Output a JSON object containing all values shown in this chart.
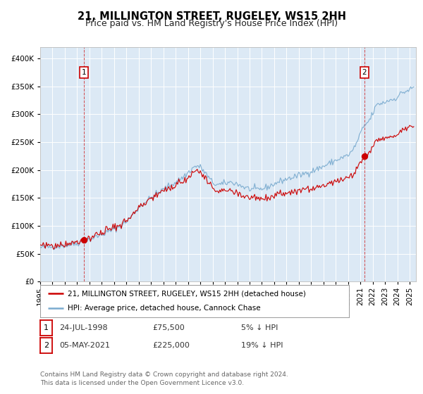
{
  "title": "21, MILLINGTON STREET, RUGELEY, WS15 2HH",
  "subtitle": "Price paid vs. HM Land Registry's House Price Index (HPI)",
  "ylim": [
    0,
    420000
  ],
  "yticks": [
    0,
    50000,
    100000,
    150000,
    200000,
    250000,
    300000,
    350000,
    400000
  ],
  "background_color": "#dce9f5",
  "grid_color": "#ffffff",
  "red_color": "#cc0000",
  "blue_color": "#7aabcf",
  "xstart_year": 1995.0,
  "xend_year": 2025.5,
  "sale1_t": 1998.558,
  "sale1_price": 75500,
  "sale2_t": 2021.336,
  "sale2_price": 225000,
  "legend_line1": "21, MILLINGTON STREET, RUGELEY, WS15 2HH (detached house)",
  "legend_line2": "HPI: Average price, detached house, Cannock Chase",
  "note1_num": "1",
  "note1_date": "24-JUL-1998",
  "note1_price": "£75,500",
  "note1_pct": "5% ↓ HPI",
  "note2_num": "2",
  "note2_date": "05-MAY-2021",
  "note2_price": "£225,000",
  "note2_pct": "19% ↓ HPI",
  "footer": "Contains HM Land Registry data © Crown copyright and database right 2024.\nThis data is licensed under the Open Government Licence v3.0.",
  "title_fontsize": 10.5,
  "subtitle_fontsize": 9,
  "tick_fontsize": 7.5,
  "legend_fontsize": 7.5,
  "note_fontsize": 8,
  "footer_fontsize": 6.5
}
